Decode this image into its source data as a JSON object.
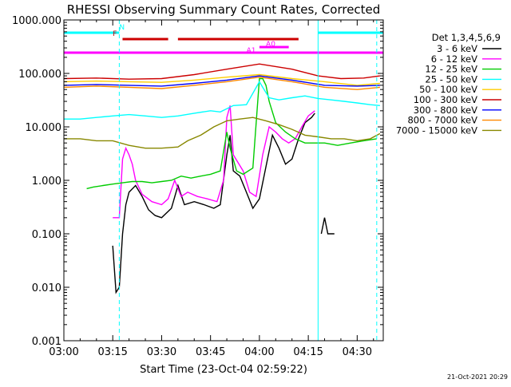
{
  "chart_data": {
    "type": "line",
    "title": "RHESSI Observing Summary Count Rates, Corrected",
    "xlabel": "Start Time (23-Oct-04 02:59:22)",
    "ylabel": "",
    "yscale": "log",
    "xlim": [
      "03:00",
      "04:38"
    ],
    "ylim": [
      0.001,
      1000
    ],
    "x_ticks": [
      "03:00",
      "03:15",
      "03:30",
      "03:45",
      "04:00",
      "04:15",
      "04:30"
    ],
    "y_ticks": [
      "1000.000",
      "100.000",
      "10.000",
      "1.000",
      "0.100",
      "0.010",
      "0.001"
    ],
    "legend": {
      "title": "Det 1,3,4,5,6,9",
      "placement": "right",
      "entries": [
        {
          "label": "3 - 6 keV",
          "color": "#000000"
        },
        {
          "label": "6 - 12 keV",
          "color": "#ff00ff"
        },
        {
          "label": "12 - 25 keV",
          "color": "#00cc00"
        },
        {
          "label": "25 - 50 keV",
          "color": "#00ffff"
        },
        {
          "label": "50 - 100 keV",
          "color": "#ffcc00"
        },
        {
          "label": "100 - 300 keV",
          "color": "#cc0000"
        },
        {
          "label": "300 - 800 keV",
          "color": "#0000ff"
        },
        {
          "label": "800 - 7000 keV",
          "color": "#ff8800"
        },
        {
          "label": "7000 - 15000 keV",
          "color": "#888800"
        }
      ]
    },
    "flag_bars": [
      {
        "label": "N",
        "color": "#00ffff",
        "segments": [
          [
            "03:00",
            "03:17"
          ],
          [
            "04:18",
            "04:38"
          ]
        ]
      },
      {
        "label": "F",
        "color": "#cc0000",
        "segments": [
          [
            "03:18",
            "03:32"
          ],
          [
            "03:35",
            "04:12"
          ]
        ]
      },
      {
        "label": "A0",
        "color": "#ff00ff",
        "segments": [
          [
            "04:00",
            "04:09"
          ]
        ]
      },
      {
        "label": "A1",
        "color": "#ff00ff",
        "segments": [
          [
            "03:00",
            "04:38"
          ]
        ]
      }
    ],
    "vertical_lines": [
      {
        "x": "03:17",
        "style": "dashed",
        "color": "#00ffff"
      },
      {
        "x": "04:18",
        "style": "solid",
        "color": "#00ffff"
      },
      {
        "x": "04:36",
        "style": "dashed",
        "color": "#00ffff"
      }
    ],
    "series": [
      {
        "name": "3 - 6 keV",
        "color": "#000000",
        "points": [
          [
            "03:15",
            0.06
          ],
          [
            "03:16",
            0.008
          ],
          [
            "03:17",
            0.01
          ],
          [
            "03:18",
            0.1
          ],
          [
            "03:19",
            0.35
          ],
          [
            "03:20",
            0.6
          ],
          [
            "03:22",
            0.8
          ],
          [
            "03:24",
            0.5
          ],
          [
            "03:26",
            0.28
          ],
          [
            "03:28",
            0.22
          ],
          [
            "03:30",
            0.2
          ],
          [
            "03:33",
            0.3
          ],
          [
            "03:35",
            0.8
          ],
          [
            "03:37",
            0.35
          ],
          [
            "03:40",
            0.4
          ],
          [
            "03:43",
            0.35
          ],
          [
            "03:46",
            0.3
          ],
          [
            "03:48",
            0.35
          ],
          [
            "03:50",
            3
          ],
          [
            "03:51",
            7
          ],
          [
            "03:52",
            1.5
          ],
          [
            "03:54",
            1.2
          ],
          [
            "03:56",
            0.6
          ],
          [
            "03:58",
            0.3
          ],
          [
            "04:00",
            0.45
          ],
          [
            "04:02",
            1.8
          ],
          [
            "04:04",
            7
          ],
          [
            "04:06",
            4
          ],
          [
            "04:08",
            2
          ],
          [
            "04:10",
            2.5
          ],
          [
            "04:12",
            6
          ],
          [
            "04:14",
            12
          ],
          [
            "04:16",
            15
          ],
          [
            "04:17",
            18
          ]
        ]
      },
      {
        "name": "3 - 6 keV (post)",
        "color": "#000000",
        "points": [
          [
            "04:19",
            0.1
          ],
          [
            "04:20",
            0.2
          ],
          [
            "04:21",
            0.1
          ],
          [
            "04:23",
            0.1
          ]
        ]
      },
      {
        "name": "6 - 12 keV",
        "color": "#ff00ff",
        "points": [
          [
            "03:15",
            0.2
          ],
          [
            "03:17",
            0.2
          ],
          [
            "03:18",
            2.5
          ],
          [
            "03:19",
            4
          ],
          [
            "03:20",
            3
          ],
          [
            "03:21",
            2
          ],
          [
            "03:22",
            1
          ],
          [
            "03:24",
            0.55
          ],
          [
            "03:27",
            0.4
          ],
          [
            "03:30",
            0.35
          ],
          [
            "03:32",
            0.45
          ],
          [
            "03:34",
            1
          ],
          [
            "03:36",
            0.5
          ],
          [
            "03:38",
            0.6
          ],
          [
            "03:41",
            0.5
          ],
          [
            "03:44",
            0.45
          ],
          [
            "03:47",
            0.4
          ],
          [
            "03:49",
            1
          ],
          [
            "03:50",
            15
          ],
          [
            "03:51",
            25
          ],
          [
            "03:52",
            3
          ],
          [
            "03:55",
            1.5
          ],
          [
            "03:57",
            0.6
          ],
          [
            "03:59",
            0.5
          ],
          [
            "04:01",
            3
          ],
          [
            "04:03",
            10
          ],
          [
            "04:05",
            8
          ],
          [
            "04:07",
            6
          ],
          [
            "04:09",
            5
          ],
          [
            "04:11",
            6
          ],
          [
            "04:13",
            10
          ],
          [
            "04:15",
            16
          ],
          [
            "04:17",
            20
          ]
        ]
      },
      {
        "name": "12 - 25 keV",
        "color": "#00cc00",
        "points": [
          [
            "03:07",
            0.7
          ],
          [
            "03:09",
            0.75
          ],
          [
            "03:12",
            0.8
          ],
          [
            "03:15",
            0.85
          ],
          [
            "03:18",
            0.9
          ],
          [
            "03:21",
            0.95
          ],
          [
            "03:24",
            0.95
          ],
          [
            "03:27",
            0.9
          ],
          [
            "03:30",
            0.95
          ],
          [
            "03:33",
            1.0
          ],
          [
            "03:36",
            1.2
          ],
          [
            "03:39",
            1.1
          ],
          [
            "03:42",
            1.2
          ],
          [
            "03:45",
            1.3
          ],
          [
            "03:48",
            1.5
          ],
          [
            "03:50",
            8
          ],
          [
            "03:51",
            4
          ],
          [
            "03:53",
            1.5
          ],
          [
            "03:55",
            1.3
          ],
          [
            "03:58",
            1.7
          ],
          [
            "04:00",
            80
          ],
          [
            "04:01",
            80
          ],
          [
            "04:02",
            60
          ],
          [
            "04:03",
            30
          ],
          [
            "04:05",
            12
          ],
          [
            "04:08",
            8
          ],
          [
            "04:11",
            6
          ],
          [
            "04:14",
            5
          ],
          [
            "04:17",
            5
          ],
          [
            "04:20",
            5
          ],
          [
            "04:24",
            4.5
          ],
          [
            "04:28",
            5
          ],
          [
            "04:32",
            5.5
          ],
          [
            "04:36",
            6
          ]
        ]
      },
      {
        "name": "25 - 50 keV",
        "color": "#00ffff",
        "points": [
          [
            "03:00",
            14
          ],
          [
            "03:05",
            14
          ],
          [
            "03:10",
            15
          ],
          [
            "03:15",
            16
          ],
          [
            "03:20",
            17
          ],
          [
            "03:25",
            16
          ],
          [
            "03:30",
            15
          ],
          [
            "03:35",
            16
          ],
          [
            "03:40",
            18
          ],
          [
            "03:45",
            20
          ],
          [
            "03:48",
            19
          ],
          [
            "03:52",
            25
          ],
          [
            "03:56",
            26
          ],
          [
            "04:00",
            70
          ],
          [
            "04:01",
            55
          ],
          [
            "04:03",
            35
          ],
          [
            "04:06",
            32
          ],
          [
            "04:10",
            35
          ],
          [
            "04:14",
            38
          ],
          [
            "04:18",
            34
          ],
          [
            "04:22",
            32
          ],
          [
            "04:26",
            30
          ],
          [
            "04:30",
            28
          ],
          [
            "04:34",
            26
          ],
          [
            "04:37",
            25
          ]
        ]
      },
      {
        "name": "50 - 100 keV",
        "color": "#ffcc00",
        "points": [
          [
            "03:00",
            70
          ],
          [
            "03:10",
            72
          ],
          [
            "03:20",
            70
          ],
          [
            "03:30",
            68
          ],
          [
            "03:40",
            75
          ],
          [
            "03:50",
            85
          ],
          [
            "04:00",
            95
          ],
          [
            "04:10",
            80
          ],
          [
            "04:20",
            70
          ],
          [
            "04:30",
            60
          ],
          [
            "04:37",
            65
          ]
        ]
      },
      {
        "name": "100 - 300 keV",
        "color": "#cc0000",
        "points": [
          [
            "03:00",
            80
          ],
          [
            "03:10",
            82
          ],
          [
            "03:20",
            78
          ],
          [
            "03:30",
            80
          ],
          [
            "03:40",
            95
          ],
          [
            "03:50",
            120
          ],
          [
            "04:00",
            150
          ],
          [
            "04:10",
            120
          ],
          [
            "04:18",
            90
          ],
          [
            "04:25",
            80
          ],
          [
            "04:32",
            82
          ],
          [
            "04:37",
            90
          ]
        ]
      },
      {
        "name": "300 - 800 keV",
        "color": "#0000ff",
        "points": [
          [
            "03:00",
            60
          ],
          [
            "03:10",
            62
          ],
          [
            "03:20",
            60
          ],
          [
            "03:30",
            58
          ],
          [
            "03:40",
            65
          ],
          [
            "03:50",
            75
          ],
          [
            "04:00",
            90
          ],
          [
            "04:10",
            75
          ],
          [
            "04:20",
            60
          ],
          [
            "04:30",
            58
          ],
          [
            "04:37",
            60
          ]
        ]
      },
      {
        "name": "800 - 7000 keV",
        "color": "#ff8800",
        "points": [
          [
            "03:00",
            55
          ],
          [
            "03:10",
            58
          ],
          [
            "03:20",
            55
          ],
          [
            "03:30",
            52
          ],
          [
            "03:40",
            60
          ],
          [
            "03:50",
            70
          ],
          [
            "04:00",
            85
          ],
          [
            "04:10",
            70
          ],
          [
            "04:20",
            55
          ],
          [
            "04:30",
            50
          ],
          [
            "04:37",
            55
          ]
        ]
      },
      {
        "name": "7000 - 15000 keV",
        "color": "#888800",
        "points": [
          [
            "03:00",
            6
          ],
          [
            "03:05",
            6
          ],
          [
            "03:10",
            5.5
          ],
          [
            "03:15",
            5.5
          ],
          [
            "03:20",
            4.5
          ],
          [
            "03:25",
            4
          ],
          [
            "03:30",
            4
          ],
          [
            "03:35",
            4.2
          ],
          [
            "03:38",
            5.5
          ],
          [
            "03:42",
            7
          ],
          [
            "03:46",
            10
          ],
          [
            "03:50",
            13
          ],
          [
            "03:54",
            14
          ],
          [
            "03:58",
            15
          ],
          [
            "04:02",
            13
          ],
          [
            "04:06",
            11
          ],
          [
            "04:10",
            9
          ],
          [
            "04:14",
            7
          ],
          [
            "04:18",
            6.5
          ],
          [
            "04:22",
            6
          ],
          [
            "04:26",
            6
          ],
          [
            "04:30",
            5.5
          ],
          [
            "04:34",
            6
          ],
          [
            "04:37",
            7.5
          ]
        ]
      }
    ]
  },
  "footer": {
    "timestamp": "21-Oct-2021 20:29"
  }
}
